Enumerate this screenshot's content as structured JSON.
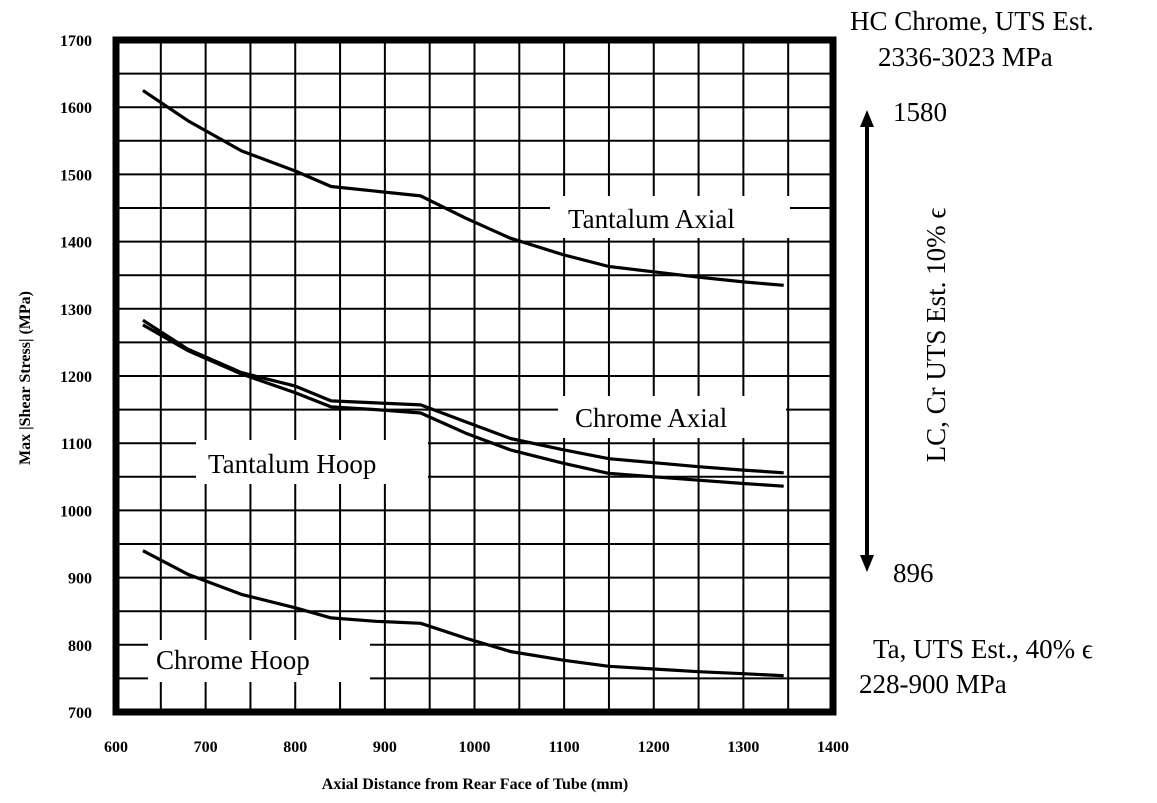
{
  "chart_data": {
    "type": "line",
    "title": "",
    "xlabel": "Axial Distance from Rear Face of Tube (mm)",
    "ylabel": "Max |Shear Stress| (MPa)",
    "xlim": [
      600,
      1400
    ],
    "ylim": [
      700,
      1700
    ],
    "grid": true,
    "x_ticks": [
      "600",
      "700",
      "800",
      "900",
      "1000",
      "1100",
      "1200",
      "1300",
      "1400"
    ],
    "y_ticks": [
      "700",
      "800",
      "900",
      "1000",
      "1100",
      "1200",
      "1300",
      "1400",
      "1500",
      "1600",
      "1700"
    ],
    "series": [
      {
        "name": "Tantalum Axial",
        "x": [
          630,
          680,
          740,
          800,
          840,
          890,
          940,
          990,
          1040,
          1100,
          1150,
          1200,
          1250,
          1300,
          1345
        ],
        "y": [
          1625,
          1580,
          1535,
          1505,
          1482,
          1475,
          1468,
          1435,
          1405,
          1380,
          1363,
          1355,
          1347,
          1340,
          1335
        ]
      },
      {
        "name": "Chrome Axial",
        "x": [
          630,
          680,
          740,
          800,
          840,
          890,
          940,
          990,
          1040,
          1100,
          1150,
          1200,
          1250,
          1300,
          1345
        ],
        "y": [
          1283,
          1240,
          1205,
          1185,
          1163,
          1160,
          1157,
          1132,
          1107,
          1090,
          1077,
          1071,
          1065,
          1060,
          1056
        ]
      },
      {
        "name": "Tantalum Hoop",
        "x": [
          630,
          680,
          740,
          800,
          840,
          890,
          940,
          990,
          1040,
          1100,
          1150,
          1200,
          1250,
          1300,
          1345
        ],
        "y": [
          1276,
          1238,
          1203,
          1175,
          1154,
          1150,
          1145,
          1115,
          1090,
          1070,
          1055,
          1050,
          1045,
          1040,
          1036
        ]
      },
      {
        "name": "Chrome Hoop",
        "x": [
          630,
          680,
          740,
          800,
          840,
          890,
          940,
          990,
          1040,
          1100,
          1150,
          1200,
          1250,
          1300,
          1345
        ],
        "y": [
          940,
          905,
          875,
          855,
          840,
          835,
          832,
          810,
          790,
          777,
          768,
          764,
          760,
          757,
          754
        ]
      }
    ],
    "annotations": {
      "hc_line1": "HC Chrome, UTS Est.",
      "hc_line2": "2336-3023 MPa",
      "arrow_top": "1580",
      "arrow_bottom": "896",
      "lc_label": "LC, Cr UTS Est. 10% ϵ",
      "ta_line1": "Ta, UTS Est., 40% ϵ",
      "ta_line2": "228-900 MPa"
    }
  }
}
